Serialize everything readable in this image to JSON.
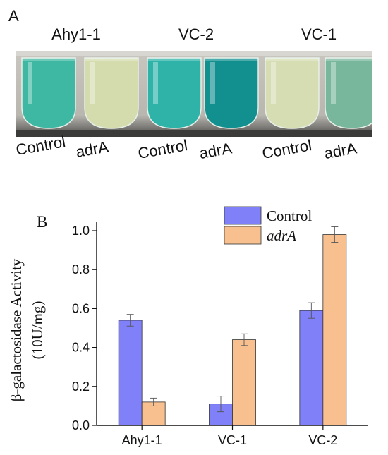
{
  "panels": {
    "a": {
      "label": "A"
    },
    "b": {
      "label": "B"
    }
  },
  "photo": {
    "groups": [
      "Ahy1-1",
      "VC-2",
      "VC-1"
    ],
    "tube_labels": [
      "Control",
      "adrA",
      "Control",
      "adrA",
      "Control",
      "adrA"
    ],
    "tube_colors": [
      "#3fb8a3",
      "#d4dcae",
      "#2fb3a9",
      "#11908f",
      "#d6ddb2",
      "#79b79c"
    ]
  },
  "chart_data": {
    "type": "bar",
    "categories": [
      "Ahy1-1",
      "VC-1",
      "VC-2"
    ],
    "series": [
      {
        "name": "Control",
        "values": [
          0.54,
          0.11,
          0.59
        ],
        "errors": [
          0.03,
          0.04,
          0.04
        ],
        "color": "#8080f8"
      },
      {
        "name": "adrA",
        "values": [
          0.12,
          0.44,
          0.98
        ],
        "errors": [
          0.02,
          0.03,
          0.04
        ],
        "color": "#f9c08f"
      }
    ],
    "ylabel_line1": "β-galactosidase Activity",
    "ylabel_line2": "(10U/mg)",
    "ylim": [
      0,
      1.0
    ],
    "yticks": [
      "0.0",
      "0.2",
      "0.4",
      "0.6",
      "0.8",
      "1.0"
    ],
    "legend_position": "top-center"
  }
}
